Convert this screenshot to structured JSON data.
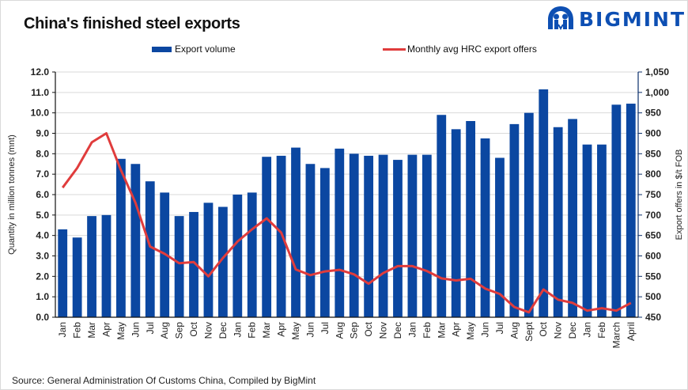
{
  "title": "China's finished steel exports",
  "logo": {
    "icon": "bigmint-people-icon",
    "text": "BIGMINT",
    "color": "#0d4fb3"
  },
  "legend": {
    "bar_label": "Export volume",
    "line_label": "Monthly avg HRC export offers"
  },
  "source": "Source: General Administration Of Customs China, Compiled by BigMint",
  "colors": {
    "bar": "#0b47a1",
    "line": "#e03c3c",
    "grid": "#d9d9d9",
    "axis": "#0b2f6b"
  },
  "chart_data": {
    "type": "bar+line",
    "title": "China's finished steel exports",
    "categories": [
      "Jan",
      "Feb",
      "Mar",
      "Apr",
      "May",
      "Jun",
      "Jul",
      "Aug",
      "Sep",
      "Oct",
      "Nov",
      "Dec",
      "Jan",
      "Feb",
      "Mar",
      "Apr",
      "May",
      "Jun",
      "Jul",
      "Aug",
      "Sep",
      "Oct",
      "Nov",
      "Dec",
      "Jan",
      "Feb",
      "Mar",
      "Apr",
      "May",
      "Jun",
      "Jul",
      "Aug",
      "Sept",
      "Oct",
      "Nov",
      "Dec",
      "Jan",
      "Feb",
      "March",
      "April"
    ],
    "series": [
      {
        "name": "Export volume",
        "type": "bar",
        "axis": "left",
        "values": [
          4.3,
          3.9,
          4.95,
          5.0,
          7.75,
          7.5,
          6.65,
          6.1,
          4.95,
          5.15,
          5.6,
          5.4,
          6.0,
          6.1,
          7.85,
          7.9,
          8.3,
          7.5,
          7.3,
          8.25,
          8.0,
          7.9,
          7.95,
          7.7,
          7.95,
          7.95,
          9.9,
          9.2,
          9.6,
          8.75,
          7.8,
          9.45,
          10.0,
          11.15,
          9.3,
          9.7,
          8.45,
          8.45,
          10.4,
          10.45
        ]
      },
      {
        "name": "Monthly avg HRC export offers",
        "type": "line",
        "axis": "right",
        "values": [
          767,
          815,
          878,
          900,
          810,
          730,
          623,
          605,
          582,
          585,
          550,
          595,
          635,
          665,
          692,
          657,
          567,
          553,
          562,
          566,
          555,
          532,
          558,
          575,
          575,
          563,
          545,
          540,
          544,
          520,
          507,
          475,
          462,
          518,
          493,
          485,
          466,
          472,
          466,
          485
        ]
      }
    ],
    "ylabel": "Quantity in million tonnes (mnt)",
    "ylim": [
      0,
      12
    ],
    "yticks": [
      "0.0",
      "1.0",
      "2.0",
      "3.0",
      "4.0",
      "5.0",
      "6.0",
      "7.0",
      "8.0",
      "9.0",
      "10.0",
      "11.0",
      "12.0"
    ],
    "y2label": "Export offers in $/t FOB",
    "y2lim": [
      450,
      1050
    ],
    "y2ticks": [
      "450",
      "500",
      "550",
      "600",
      "650",
      "700",
      "750",
      "800",
      "850",
      "900",
      "950",
      "1,000",
      "1,050"
    ],
    "grid": true,
    "legend_position": "top"
  }
}
